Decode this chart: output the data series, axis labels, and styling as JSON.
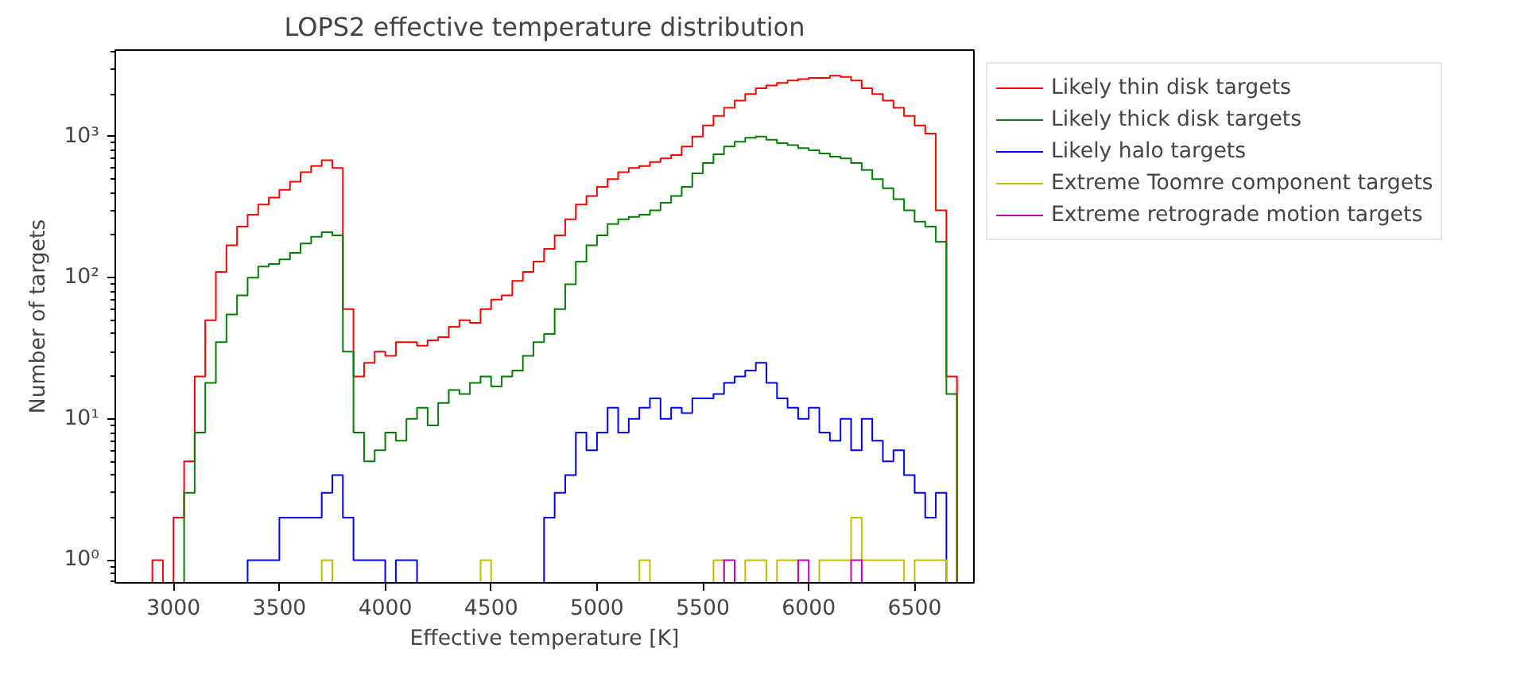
{
  "chart_data": {
    "type": "histogram",
    "title": "LOPS2 effective temperature distribution",
    "xlabel": "Effective temperature [K]",
    "ylabel": "Number of targets",
    "log": "y",
    "grid": false,
    "legend": "right",
    "bins": [
      2900,
      2950,
      3000,
      3050,
      3100,
      3150,
      3200,
      3250,
      3300,
      3350,
      3400,
      3450,
      3500,
      3550,
      3600,
      3650,
      3700,
      3750,
      3800,
      3850,
      3900,
      3950,
      4000,
      4050,
      4100,
      4150,
      4200,
      4250,
      4300,
      4350,
      4400,
      4450,
      4500,
      4550,
      4600,
      4650,
      4700,
      4750,
      4800,
      4850,
      4900,
      4950,
      5000,
      5050,
      5100,
      5150,
      5200,
      5250,
      5300,
      5350,
      5400,
      5450,
      5500,
      5550,
      5600,
      5650,
      5700,
      5750,
      5800,
      5850,
      5900,
      5950,
      6000,
      6050,
      6100,
      6150,
      6200,
      6250,
      6300,
      6350,
      6400,
      6450,
      6500,
      6550,
      6600,
      6650,
      6700
    ],
    "xlim": [
      2725,
      6780
    ],
    "xticks": [
      3000,
      3500,
      4000,
      4500,
      5000,
      5500,
      6000,
      6500
    ],
    "ylim": [
      0.69,
      4100
    ],
    "yticks": [
      {
        "value": 1,
        "label": "10⁰"
      },
      {
        "value": 10,
        "label": "10¹"
      },
      {
        "value": 100,
        "label": "10²"
      },
      {
        "value": 1000,
        "label": "10³"
      }
    ],
    "series": [
      {
        "name": "Likely thin disk targets",
        "color": "#ff0000",
        "values": [
          1,
          null,
          2,
          5,
          20,
          50,
          110,
          170,
          230,
          280,
          330,
          370,
          420,
          480,
          560,
          620,
          680,
          600,
          60,
          20,
          25,
          30,
          28,
          35,
          35,
          33,
          36,
          38,
          45,
          50,
          48,
          60,
          70,
          75,
          95,
          110,
          130,
          160,
          200,
          260,
          330,
          380,
          440,
          500,
          560,
          600,
          620,
          660,
          700,
          740,
          850,
          1000,
          1200,
          1400,
          1600,
          1800,
          2000,
          2200,
          2300,
          2400,
          2500,
          2550,
          2600,
          2600,
          2700,
          2650,
          2500,
          2200,
          2000,
          1800,
          1600,
          1400,
          1200,
          1050,
          300,
          20
        ]
      },
      {
        "name": "Likely thick disk targets",
        "color": "#008000",
        "values": [
          null,
          null,
          null,
          3,
          8,
          18,
          35,
          55,
          75,
          100,
          120,
          125,
          135,
          150,
          175,
          195,
          210,
          200,
          30,
          8,
          5,
          6,
          8,
          7,
          10,
          12,
          9,
          13,
          16,
          15,
          18,
          20,
          17,
          20,
          22,
          28,
          35,
          40,
          60,
          90,
          130,
          170,
          200,
          240,
          260,
          270,
          280,
          300,
          340,
          380,
          440,
          550,
          650,
          750,
          850,
          920,
          980,
          1000,
          950,
          900,
          870,
          830,
          800,
          760,
          720,
          700,
          650,
          580,
          500,
          430,
          360,
          300,
          250,
          230,
          180,
          15
        ]
      },
      {
        "name": "Likely halo targets",
        "color": "#0000ff",
        "values": [
          null,
          null,
          null,
          null,
          null,
          null,
          null,
          null,
          null,
          1,
          1,
          1,
          2,
          2,
          2,
          2,
          3,
          4,
          2,
          1,
          1,
          1,
          null,
          1,
          1,
          null,
          null,
          null,
          null,
          null,
          null,
          null,
          null,
          null,
          null,
          null,
          null,
          2,
          3,
          4,
          8,
          6,
          8,
          12,
          8,
          10,
          12,
          14,
          10,
          12,
          11,
          14,
          14,
          15,
          18,
          20,
          22,
          25,
          18,
          14,
          12,
          10,
          12,
          8,
          7,
          10,
          6,
          10,
          7,
          5,
          6,
          4,
          3,
          2,
          3,
          null
        ]
      },
      {
        "name": "Extreme Toomre component targets",
        "color": "#bfbf00",
        "values": [
          null,
          null,
          null,
          null,
          null,
          null,
          null,
          null,
          null,
          null,
          null,
          null,
          null,
          null,
          null,
          null,
          1,
          null,
          null,
          null,
          null,
          null,
          null,
          null,
          null,
          null,
          null,
          null,
          null,
          null,
          null,
          1,
          null,
          null,
          null,
          null,
          null,
          null,
          null,
          null,
          null,
          null,
          null,
          null,
          null,
          null,
          1,
          null,
          null,
          null,
          null,
          null,
          null,
          1,
          null,
          null,
          1,
          1,
          null,
          1,
          1,
          null,
          null,
          1,
          1,
          1,
          2,
          1,
          1,
          1,
          1,
          null,
          1,
          1,
          1,
          null
        ]
      },
      {
        "name": "Extreme retrograde motion targets",
        "color": "#bf00bf",
        "values": [
          null,
          null,
          null,
          null,
          null,
          null,
          null,
          null,
          null,
          null,
          null,
          null,
          null,
          null,
          null,
          null,
          null,
          null,
          null,
          null,
          null,
          null,
          null,
          null,
          null,
          null,
          null,
          null,
          null,
          null,
          null,
          null,
          null,
          null,
          null,
          null,
          null,
          null,
          null,
          null,
          null,
          null,
          null,
          null,
          null,
          null,
          null,
          null,
          null,
          null,
          null,
          null,
          null,
          null,
          1,
          null,
          null,
          null,
          null,
          null,
          null,
          1,
          null,
          null,
          null,
          null,
          1,
          null,
          null,
          null,
          null,
          null,
          null,
          null,
          null,
          null
        ]
      }
    ]
  }
}
